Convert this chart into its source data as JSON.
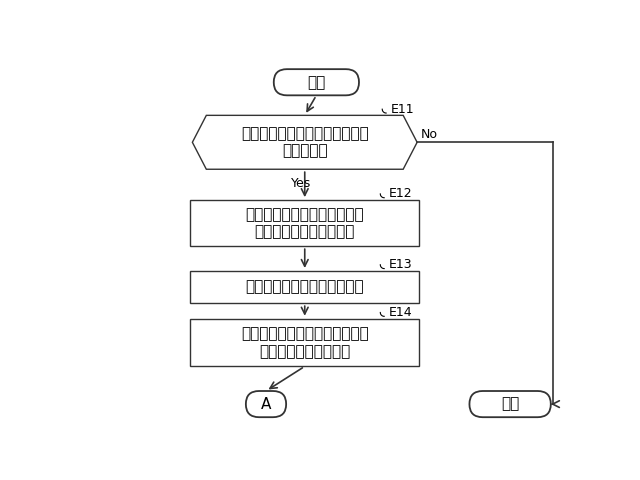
{
  "bg_color": "#ffffff",
  "line_color": "#333333",
  "text_color": "#000000",
  "font_size": 11,
  "small_font_size": 9,
  "start_text": "開始",
  "diamond_text": "第１要求（指定画像追加要求）\nイベント？",
  "box1_text": "固定フラグが付されていない\n重畛画像レイヤをクリア",
  "box2_text": "対応画像から指定画像を取得",
  "box3_text": "指定画像の位置サイズを調整、\n重畛画像レイヤに設定",
  "end_a_text": "A",
  "end_owari_text": "終了",
  "label_e11": "E11",
  "label_e12": "E12",
  "label_e13": "E13",
  "label_e14": "E14",
  "label_yes": "Yes",
  "label_no": "No"
}
